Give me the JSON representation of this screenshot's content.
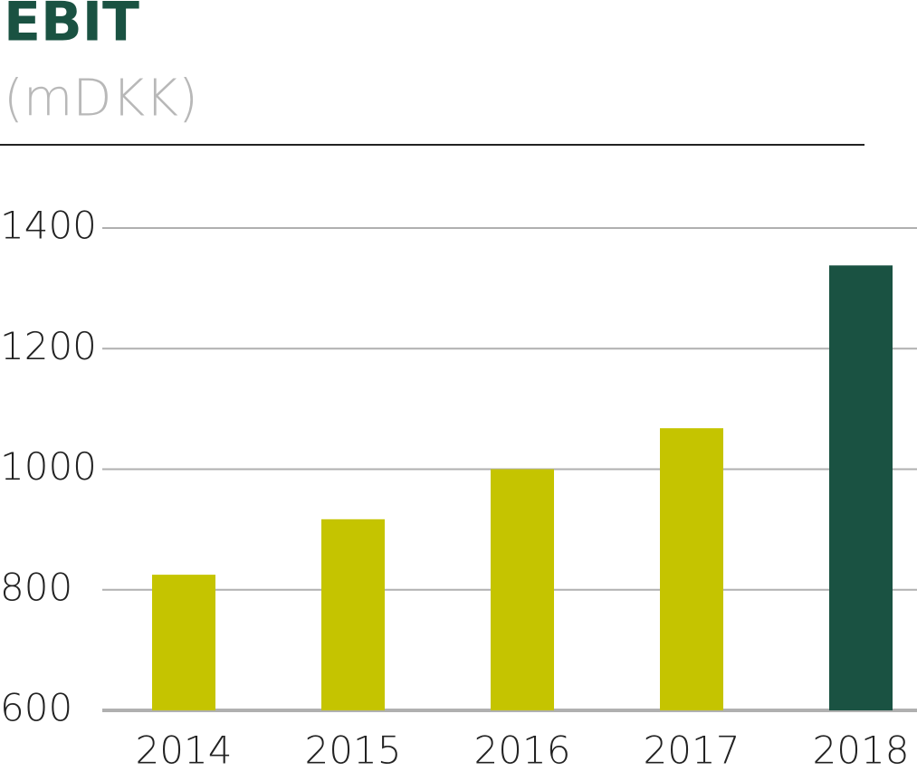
{
  "chart_data": {
    "type": "bar",
    "title": "EBIT",
    "subtitle": "(mDKK)",
    "categories": [
      "2014",
      "2015",
      "2016",
      "2017",
      "2018"
    ],
    "values": [
      825,
      917,
      1000,
      1068,
      1338
    ],
    "colors": [
      "#c5c400",
      "#c5c400",
      "#c5c400",
      "#c5c400",
      "#1a5242"
    ],
    "ylim": [
      600,
      1400
    ],
    "yticks": [
      600,
      800,
      1000,
      1200,
      1400
    ],
    "grid": true
  }
}
